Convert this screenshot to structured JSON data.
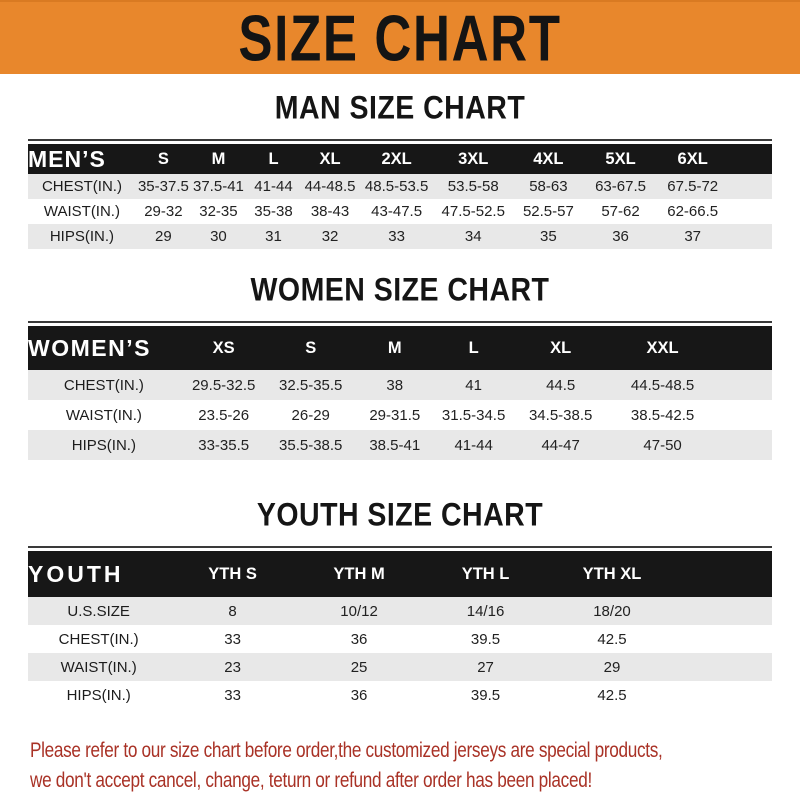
{
  "banner": {
    "title": "SIZE CHART",
    "bg_color": "#E8872C",
    "text_color": "#141414"
  },
  "sections": [
    {
      "heading": "MAN SIZE CHART",
      "table": "men"
    },
    {
      "heading": "WOMEN SIZE CHART",
      "table": "women"
    },
    {
      "heading": "YOUTH SIZE CHART",
      "table": "youth"
    }
  ],
  "tables": {
    "men": {
      "corner_label": "MEN’S",
      "header": [
        "S",
        "M",
        "L",
        "XL",
        "2XL",
        "3XL",
        "4XL",
        "5XL",
        "6XL"
      ],
      "rows": [
        {
          "label": "CHEST(IN.)",
          "values": [
            "35-37.5",
            "37.5-41",
            "41-44",
            "44-48.5",
            "48.5-53.5",
            "53.5-58",
            "58-63",
            "63-67.5",
            "67.5-72"
          ]
        },
        {
          "label": "WAIST(IN.)",
          "values": [
            "29-32",
            "32-35",
            "35-38",
            "38-43",
            "43-47.5",
            "47.5-52.5",
            "52.5-57",
            "57-62",
            "62-66.5"
          ]
        },
        {
          "label": "HIPS(IN.)",
          "values": [
            "29",
            "30",
            "31",
            "32",
            "33",
            "34",
            "35",
            "36",
            "37"
          ]
        }
      ]
    },
    "women": {
      "corner_label": "WOMEN’S",
      "header": [
        "XS",
        "S",
        "M",
        "L",
        "XL",
        "XXL"
      ],
      "rows": [
        {
          "label": "CHEST(IN.)",
          "values": [
            "29.5-32.5",
            "32.5-35.5",
            "38",
            "41",
            "44.5",
            "44.5-48.5"
          ]
        },
        {
          "label": "WAIST(IN.)",
          "values": [
            "23.5-26",
            "26-29",
            "29-31.5",
            "31.5-34.5",
            "34.5-38.5",
            "38.5-42.5"
          ]
        },
        {
          "label": "HIPS(IN.)",
          "values": [
            "33-35.5",
            "35.5-38.5",
            "38.5-41",
            "41-44",
            "44-47",
            "47-50"
          ]
        }
      ]
    },
    "youth": {
      "corner_label": "YOUTH",
      "header": [
        "YTH S",
        "YTH M",
        "YTH L",
        "YTH XL"
      ],
      "rows": [
        {
          "label": "U.S.SIZE",
          "values": [
            "8",
            "10/12",
            "14/16",
            "18/20"
          ]
        },
        {
          "label": "CHEST(IN.)",
          "values": [
            "33",
            "36",
            "39.5",
            "42.5"
          ]
        },
        {
          "label": "WAIST(IN.)",
          "values": [
            "23",
            "25",
            "27",
            "29"
          ]
        },
        {
          "label": "HIPS(IN.)",
          "values": [
            "33",
            "36",
            "39.5",
            "42.5"
          ]
        }
      ]
    }
  },
  "footer": {
    "color": "#A93226",
    "lines": [
      "Please refer to our size chart before order,the customized jerseys are special products,",
      "we don't accept cancel, change, teturn or refund after order has been placed!"
    ]
  }
}
